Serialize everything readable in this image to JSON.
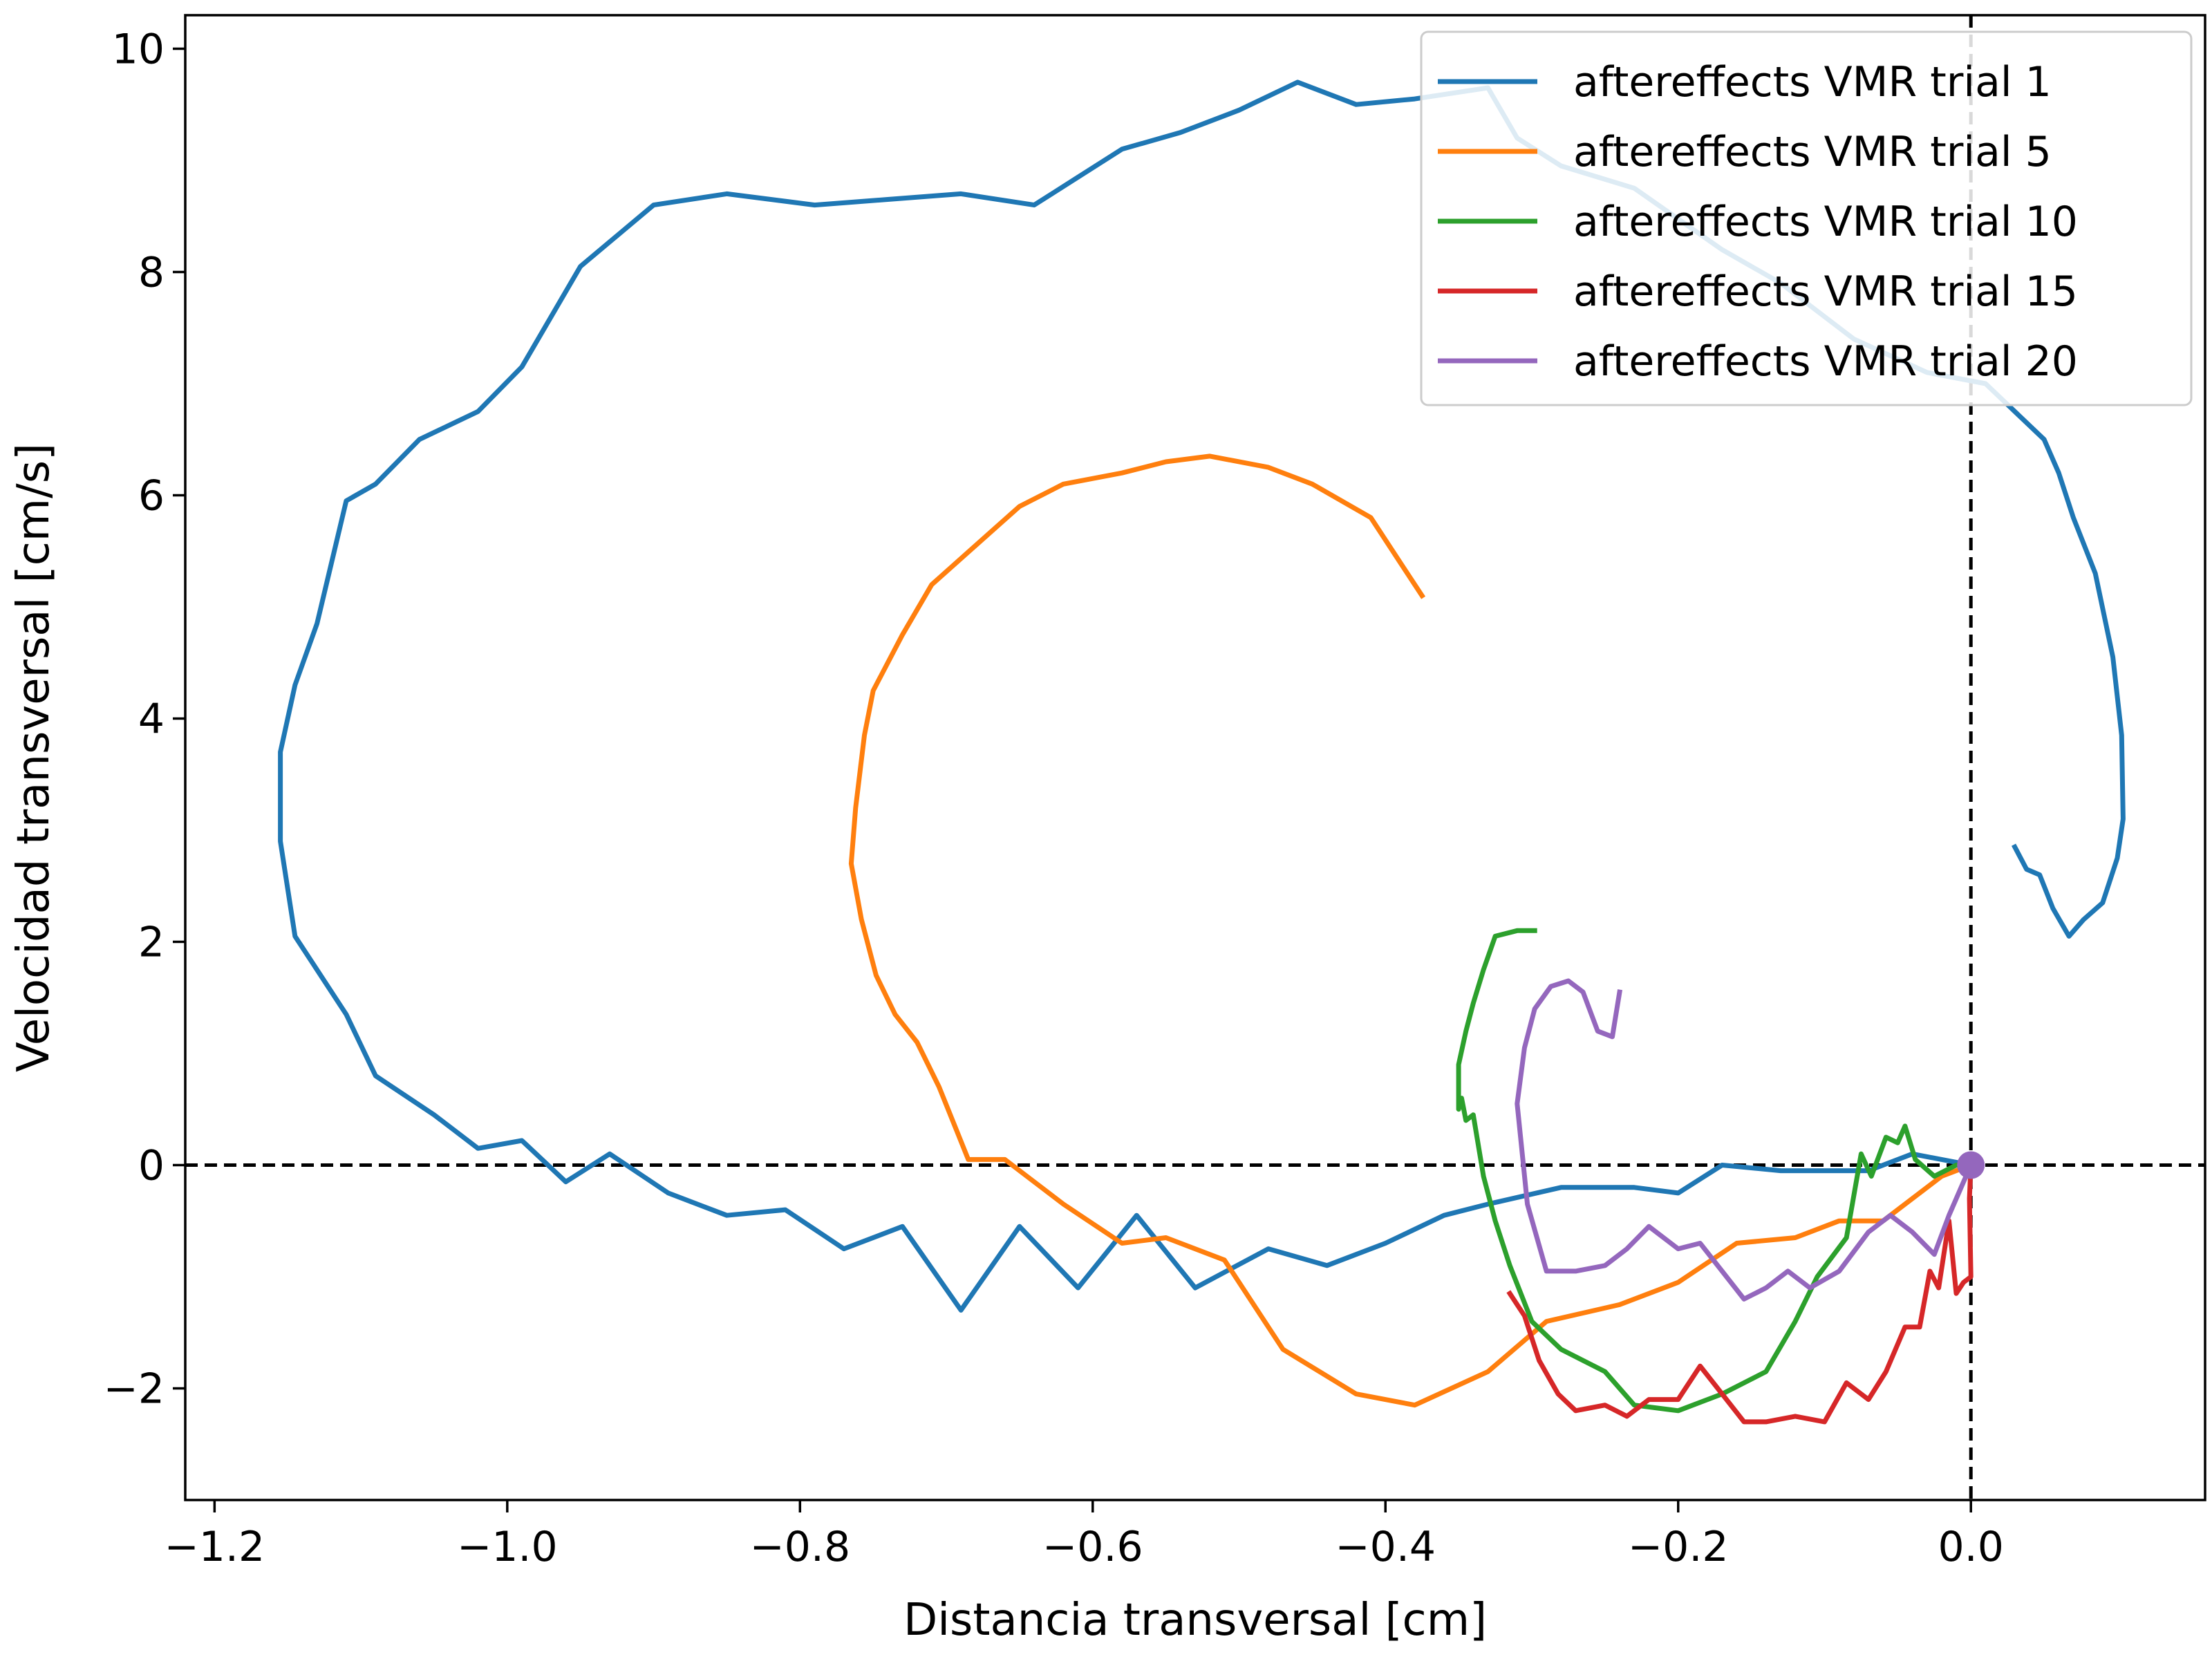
{
  "chart_data": {
    "type": "line",
    "title": "",
    "xlabel": "Distancia transversal [cm]",
    "ylabel": "Velocidad transversal [cm/s]",
    "xlim": [
      -1.22,
      0.16
    ],
    "ylim": [
      -3.0,
      10.3
    ],
    "xticks": [
      -1.2,
      -1.0,
      -0.8,
      -0.6,
      -0.4,
      -0.2,
      0.0
    ],
    "xtick_labels": [
      "−1.2",
      "−1.0",
      "−0.8",
      "−0.6",
      "−0.4",
      "−0.2",
      "0.0"
    ],
    "yticks": [
      -2,
      0,
      2,
      4,
      6,
      8,
      10
    ],
    "ytick_labels": [
      "−2",
      "0",
      "2",
      "4",
      "6",
      "8",
      "10"
    ],
    "grid": false,
    "legend_position": "top-right",
    "reference_lines": {
      "x": 0,
      "y": 0,
      "style": "dashed"
    },
    "origin_marker": {
      "x": 0,
      "y": 0,
      "color": "#9467bd"
    },
    "series": [
      {
        "name": "aftereffects VMR trial 1",
        "color": "#1f77b4",
        "points": [
          [
            0.03,
            2.85
          ],
          [
            0.038,
            2.65
          ],
          [
            0.047,
            2.6
          ],
          [
            0.056,
            2.3
          ],
          [
            0.067,
            2.05
          ],
          [
            0.077,
            2.2
          ],
          [
            0.09,
            2.35
          ],
          [
            0.1,
            2.75
          ],
          [
            0.104,
            3.1
          ],
          [
            0.103,
            3.85
          ],
          [
            0.097,
            4.55
          ],
          [
            0.085,
            5.3
          ],
          [
            0.07,
            5.8
          ],
          [
            0.06,
            6.2
          ],
          [
            0.05,
            6.5
          ],
          [
            0.03,
            6.75
          ],
          [
            0.01,
            7.0
          ],
          [
            -0.03,
            7.1
          ],
          [
            -0.08,
            7.4
          ],
          [
            -0.13,
            7.9
          ],
          [
            -0.17,
            8.2
          ],
          [
            -0.23,
            8.75
          ],
          [
            -0.28,
            8.95
          ],
          [
            -0.31,
            9.2
          ],
          [
            -0.33,
            9.65
          ],
          [
            -0.38,
            9.55
          ],
          [
            -0.42,
            9.5
          ],
          [
            -0.46,
            9.7
          ],
          [
            -0.5,
            9.45
          ],
          [
            -0.54,
            9.25
          ],
          [
            -0.58,
            9.1
          ],
          [
            -0.64,
            8.6
          ],
          [
            -0.69,
            8.7
          ],
          [
            -0.74,
            8.65
          ],
          [
            -0.79,
            8.6
          ],
          [
            -0.85,
            8.7
          ],
          [
            -0.9,
            8.6
          ],
          [
            -0.95,
            8.05
          ],
          [
            -0.99,
            7.15
          ],
          [
            -1.02,
            6.75
          ],
          [
            -1.06,
            6.5
          ],
          [
            -1.09,
            6.1
          ],
          [
            -1.11,
            5.95
          ],
          [
            -1.13,
            4.85
          ],
          [
            -1.145,
            4.3
          ],
          [
            -1.155,
            3.7
          ],
          [
            -1.155,
            2.9
          ],
          [
            -1.145,
            2.05
          ],
          [
            -1.13,
            1.75
          ],
          [
            -1.11,
            1.35
          ],
          [
            -1.09,
            0.8
          ],
          [
            -1.05,
            0.45
          ],
          [
            -1.02,
            0.15
          ],
          [
            -0.99,
            0.22
          ],
          [
            -0.96,
            -0.15
          ],
          [
            -0.93,
            0.1
          ],
          [
            -0.89,
            -0.25
          ],
          [
            -0.85,
            -0.45
          ],
          [
            -0.81,
            -0.4
          ],
          [
            -0.77,
            -0.75
          ],
          [
            -0.73,
            -0.55
          ],
          [
            -0.69,
            -1.3
          ],
          [
            -0.65,
            -0.55
          ],
          [
            -0.61,
            -1.1
          ],
          [
            -0.57,
            -0.45
          ],
          [
            -0.53,
            -1.1
          ],
          [
            -0.48,
            -0.75
          ],
          [
            -0.44,
            -0.9
          ],
          [
            -0.4,
            -0.7
          ],
          [
            -0.36,
            -0.45
          ],
          [
            -0.33,
            -0.35
          ],
          [
            -0.28,
            -0.2
          ],
          [
            -0.23,
            -0.2
          ],
          [
            -0.2,
            -0.25
          ],
          [
            -0.17,
            0.0
          ],
          [
            -0.13,
            -0.05
          ],
          [
            -0.1,
            -0.05
          ],
          [
            -0.07,
            -0.05
          ],
          [
            -0.04,
            0.1
          ],
          [
            0.0,
            0.0
          ]
        ]
      },
      {
        "name": "aftereffects VMR trial 5",
        "color": "#ff7f0e",
        "points": [
          [
            -0.375,
            5.1
          ],
          [
            -0.39,
            5.4
          ],
          [
            -0.41,
            5.8
          ],
          [
            -0.45,
            6.1
          ],
          [
            -0.48,
            6.25
          ],
          [
            -0.52,
            6.35
          ],
          [
            -0.55,
            6.3
          ],
          [
            -0.58,
            6.2
          ],
          [
            -0.62,
            6.1
          ],
          [
            -0.65,
            5.9
          ],
          [
            -0.68,
            5.55
          ],
          [
            -0.71,
            5.2
          ],
          [
            -0.73,
            4.75
          ],
          [
            -0.75,
            4.25
          ],
          [
            -0.756,
            3.85
          ],
          [
            -0.762,
            3.2
          ],
          [
            -0.765,
            2.7
          ],
          [
            -0.758,
            2.2
          ],
          [
            -0.748,
            1.7
          ],
          [
            -0.735,
            1.35
          ],
          [
            -0.72,
            1.1
          ],
          [
            -0.705,
            0.7
          ],
          [
            -0.685,
            0.05
          ],
          [
            -0.66,
            0.05
          ],
          [
            -0.62,
            -0.35
          ],
          [
            -0.58,
            -0.7
          ],
          [
            -0.55,
            -0.65
          ],
          [
            -0.51,
            -0.85
          ],
          [
            -0.47,
            -1.65
          ],
          [
            -0.42,
            -2.05
          ],
          [
            -0.38,
            -2.15
          ],
          [
            -0.33,
            -1.85
          ],
          [
            -0.29,
            -1.4
          ],
          [
            -0.24,
            -1.25
          ],
          [
            -0.2,
            -1.05
          ],
          [
            -0.16,
            -0.7
          ],
          [
            -0.12,
            -0.65
          ],
          [
            -0.09,
            -0.5
          ],
          [
            -0.06,
            -0.5
          ],
          [
            -0.02,
            -0.1
          ],
          [
            0.0,
            0.0
          ]
        ]
      },
      {
        "name": "aftereffects VMR trial 10",
        "color": "#2ca02c",
        "points": [
          [
            -0.298,
            2.1
          ],
          [
            -0.31,
            2.1
          ],
          [
            -0.325,
            2.05
          ],
          [
            -0.333,
            1.75
          ],
          [
            -0.34,
            1.45
          ],
          [
            -0.345,
            1.2
          ],
          [
            -0.35,
            0.9
          ],
          [
            -0.35,
            0.5
          ],
          [
            -0.348,
            0.6
          ],
          [
            -0.345,
            0.4
          ],
          [
            -0.34,
            0.45
          ],
          [
            -0.333,
            -0.1
          ],
          [
            -0.325,
            -0.5
          ],
          [
            -0.315,
            -0.9
          ],
          [
            -0.3,
            -1.4
          ],
          [
            -0.28,
            -1.65
          ],
          [
            -0.25,
            -1.85
          ],
          [
            -0.23,
            -2.15
          ],
          [
            -0.2,
            -2.2
          ],
          [
            -0.17,
            -2.05
          ],
          [
            -0.14,
            -1.85
          ],
          [
            -0.12,
            -1.4
          ],
          [
            -0.105,
            -1.0
          ],
          [
            -0.085,
            -0.65
          ],
          [
            -0.075,
            0.1
          ],
          [
            -0.068,
            -0.1
          ],
          [
            -0.058,
            0.25
          ],
          [
            -0.05,
            0.2
          ],
          [
            -0.045,
            0.35
          ],
          [
            -0.038,
            0.05
          ],
          [
            -0.025,
            -0.1
          ],
          [
            -0.01,
            0.0
          ],
          [
            0.0,
            0.0
          ]
        ]
      },
      {
        "name": "aftereffects VMR trial 15",
        "color": "#d62728",
        "points": [
          [
            -0.315,
            -1.15
          ],
          [
            -0.305,
            -1.35
          ],
          [
            -0.295,
            -1.75
          ],
          [
            -0.282,
            -2.05
          ],
          [
            -0.27,
            -2.2
          ],
          [
            -0.25,
            -2.15
          ],
          [
            -0.235,
            -2.25
          ],
          [
            -0.22,
            -2.1
          ],
          [
            -0.2,
            -2.1
          ],
          [
            -0.185,
            -1.8
          ],
          [
            -0.17,
            -2.05
          ],
          [
            -0.155,
            -2.3
          ],
          [
            -0.14,
            -2.3
          ],
          [
            -0.12,
            -2.25
          ],
          [
            -0.1,
            -2.3
          ],
          [
            -0.085,
            -1.95
          ],
          [
            -0.07,
            -2.1
          ],
          [
            -0.058,
            -1.85
          ],
          [
            -0.045,
            -1.45
          ],
          [
            -0.035,
            -1.45
          ],
          [
            -0.028,
            -0.95
          ],
          [
            -0.022,
            -1.1
          ],
          [
            -0.015,
            -0.5
          ],
          [
            -0.01,
            -1.15
          ],
          [
            -0.005,
            -1.05
          ],
          [
            0.0,
            -1.0
          ],
          [
            -0.001,
            -0.3
          ],
          [
            0.0,
            0.0
          ]
        ]
      },
      {
        "name": "aftereffects VMR trial 20",
        "color": "#9467bd",
        "points": [
          [
            -0.24,
            1.55
          ],
          [
            -0.245,
            1.15
          ],
          [
            -0.255,
            1.2
          ],
          [
            -0.265,
            1.55
          ],
          [
            -0.275,
            1.65
          ],
          [
            -0.287,
            1.6
          ],
          [
            -0.298,
            1.4
          ],
          [
            -0.305,
            1.05
          ],
          [
            -0.31,
            0.55
          ],
          [
            -0.303,
            -0.35
          ],
          [
            -0.29,
            -0.95
          ],
          [
            -0.27,
            -0.95
          ],
          [
            -0.25,
            -0.9
          ],
          [
            -0.235,
            -0.75
          ],
          [
            -0.22,
            -0.55
          ],
          [
            -0.2,
            -0.75
          ],
          [
            -0.185,
            -0.7
          ],
          [
            -0.17,
            -0.95
          ],
          [
            -0.155,
            -1.2
          ],
          [
            -0.14,
            -1.1
          ],
          [
            -0.125,
            -0.95
          ],
          [
            -0.11,
            -1.1
          ],
          [
            -0.09,
            -0.95
          ],
          [
            -0.07,
            -0.6
          ],
          [
            -0.055,
            -0.45
          ],
          [
            -0.04,
            -0.6
          ],
          [
            -0.025,
            -0.8
          ],
          [
            -0.015,
            -0.45
          ],
          [
            -0.005,
            -0.15
          ],
          [
            0.0,
            0.0
          ]
        ]
      }
    ]
  }
}
